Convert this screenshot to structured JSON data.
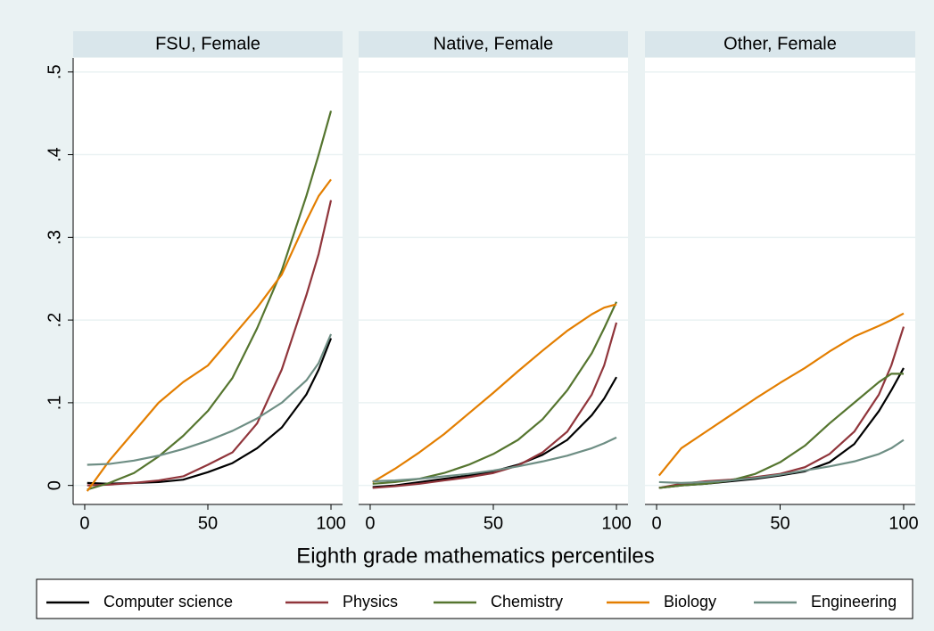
{
  "chart_data": [
    {
      "type": "line",
      "title": "FSU, Female",
      "y_axis_shown": true,
      "grid": true,
      "x": [
        1,
        10,
        20,
        30,
        40,
        50,
        60,
        70,
        80,
        90,
        95,
        100
      ],
      "xlim": [
        -4.7,
        104.7
      ],
      "xticks": [
        0,
        50,
        100
      ],
      "ylim": [
        -0.023,
        0.517
      ],
      "yticks": [
        0,
        {
          "value": 0.1,
          "label": ".1"
        },
        {
          "value": 0.2,
          "label": ".2"
        },
        {
          "value": 0.3,
          "label": ".3"
        },
        {
          "value": 0.4,
          "label": ".4"
        },
        {
          "value": 0.5,
          "label": ".5"
        }
      ],
      "series": [
        {
          "name": "Computer science",
          "color": "#000000",
          "values": [
            0.003,
            0.002,
            0.003,
            0.004,
            0.007,
            0.016,
            0.027,
            0.045,
            0.07,
            0.11,
            0.14,
            0.178
          ]
        },
        {
          "name": "Physics",
          "color": "#90353b",
          "values": [
            0.0,
            0.001,
            0.003,
            0.006,
            0.011,
            0.025,
            0.04,
            0.075,
            0.14,
            0.23,
            0.28,
            0.345
          ]
        },
        {
          "name": "Chemistry",
          "color": "#55752f",
          "values": [
            -0.005,
            0.003,
            0.015,
            0.035,
            0.06,
            0.09,
            0.13,
            0.19,
            0.26,
            0.35,
            0.4,
            0.453
          ]
        },
        {
          "name": "Biology",
          "color": "#e37e00",
          "values": [
            -0.007,
            0.03,
            0.065,
            0.1,
            0.125,
            0.145,
            0.18,
            0.215,
            0.255,
            0.32,
            0.35,
            0.37
          ]
        },
        {
          "name": "Engineering",
          "color": "#6e8e84",
          "values": [
            0.025,
            0.026,
            0.03,
            0.036,
            0.044,
            0.054,
            0.066,
            0.081,
            0.1,
            0.127,
            0.148,
            0.183
          ]
        }
      ]
    },
    {
      "type": "line",
      "title": "Native, Female",
      "y_axis_shown": false,
      "grid": true,
      "xlabel": "Eighth grade mathematics percentiles",
      "x": [
        1,
        10,
        20,
        30,
        40,
        50,
        60,
        70,
        80,
        90,
        95,
        100
      ],
      "xlim": [
        -4.7,
        104.7
      ],
      "xticks": [
        0,
        50,
        100
      ],
      "ylim": [
        -0.023,
        0.517
      ],
      "yticks": [
        0,
        0.1,
        0.2,
        0.3,
        0.4,
        0.5
      ],
      "series": [
        {
          "color": "#000000",
          "values": [
            -0.002,
            0.0,
            0.004,
            0.008,
            0.012,
            0.017,
            0.025,
            0.037,
            0.055,
            0.085,
            0.105,
            0.131
          ]
        },
        {
          "color": "#90353b",
          "values": [
            -0.003,
            -0.001,
            0.002,
            0.006,
            0.01,
            0.015,
            0.024,
            0.04,
            0.065,
            0.11,
            0.145,
            0.197
          ]
        },
        {
          "color": "#55752f",
          "values": [
            0.002,
            0.004,
            0.008,
            0.015,
            0.025,
            0.038,
            0.055,
            0.08,
            0.115,
            0.16,
            0.19,
            0.222
          ]
        },
        {
          "color": "#e37e00",
          "values": [
            0.004,
            0.02,
            0.04,
            0.062,
            0.087,
            0.112,
            0.138,
            0.163,
            0.187,
            0.207,
            0.215,
            0.219
          ]
        },
        {
          "color": "#6e8e84",
          "values": [
            0.005,
            0.006,
            0.008,
            0.011,
            0.014,
            0.018,
            0.023,
            0.029,
            0.036,
            0.045,
            0.051,
            0.058
          ]
        }
      ]
    },
    {
      "type": "line",
      "title": "Other, Female",
      "y_axis_shown": false,
      "grid": true,
      "x": [
        1,
        10,
        20,
        30,
        40,
        50,
        60,
        70,
        80,
        90,
        95,
        100
      ],
      "xlim": [
        -4.7,
        104.7
      ],
      "xticks": [
        0,
        50,
        100
      ],
      "ylim": [
        -0.023,
        0.517
      ],
      "yticks": [
        0,
        0.1,
        0.2,
        0.3,
        0.4,
        0.5
      ],
      "series": [
        {
          "color": "#000000",
          "values": [
            -0.003,
            0.0,
            0.002,
            0.005,
            0.008,
            0.012,
            0.017,
            0.028,
            0.05,
            0.09,
            0.115,
            0.142
          ]
        },
        {
          "color": "#90353b",
          "values": [
            -0.003,
            0.002,
            0.005,
            0.007,
            0.01,
            0.014,
            0.022,
            0.038,
            0.065,
            0.11,
            0.145,
            0.192
          ]
        },
        {
          "color": "#55752f",
          "values": [
            -0.003,
            0.0,
            0.002,
            0.006,
            0.014,
            0.028,
            0.048,
            0.075,
            0.1,
            0.125,
            0.135,
            0.135
          ]
        },
        {
          "color": "#e37e00",
          "values": [
            0.012,
            0.045,
            0.065,
            0.085,
            0.105,
            0.124,
            0.142,
            0.162,
            0.18,
            0.193,
            0.2,
            0.208
          ]
        },
        {
          "color": "#6e8e84",
          "values": [
            0.004,
            0.003,
            0.004,
            0.006,
            0.009,
            0.013,
            0.018,
            0.023,
            0.029,
            0.038,
            0.045,
            0.055
          ]
        }
      ]
    }
  ]
}
